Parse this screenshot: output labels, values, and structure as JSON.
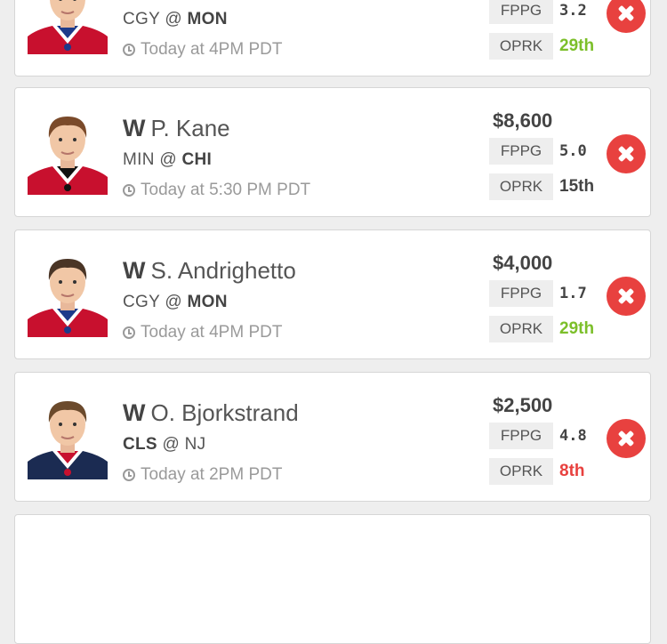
{
  "colors": {
    "oprk_good": "#7cbf2a",
    "oprk_bad": "#e8413f",
    "remove_button": "#e8413f"
  },
  "icons": {
    "time": "clock-icon",
    "remove": "close-icon"
  },
  "players": [
    {
      "position": "",
      "name": "",
      "team": "CGY",
      "opponent": "MON",
      "team_bold": false,
      "time": "Today at 4PM PDT",
      "salary": "",
      "fppg_label": "FPPG",
      "fppg": "3.2",
      "oprk_label": "OPRK",
      "oprk": "29th",
      "oprk_rating": "good",
      "jersey": "canadiens"
    },
    {
      "position": "W",
      "name": "P. Kane",
      "team": "MIN",
      "opponent": "CHI",
      "team_bold": false,
      "time": "Today at 5:30 PM PDT",
      "salary": "$8,600",
      "fppg_label": "FPPG",
      "fppg": "5.0",
      "oprk_label": "OPRK",
      "oprk": "15th",
      "oprk_rating": "neutral",
      "jersey": "blackhawks"
    },
    {
      "position": "W",
      "name": "S. Andrighetto",
      "team": "CGY",
      "opponent": "MON",
      "team_bold": false,
      "time": "Today at 4PM PDT",
      "salary": "$4,000",
      "fppg_label": "FPPG",
      "fppg": "1.7",
      "oprk_label": "OPRK",
      "oprk": "29th",
      "oprk_rating": "good",
      "jersey": "canadiens"
    },
    {
      "position": "W",
      "name": "O. Bjorkstrand",
      "team": "CLS",
      "opponent": "NJ",
      "team_bold": true,
      "time": "Today at 2PM PDT",
      "salary": "$2,500",
      "fppg_label": "FPPG",
      "fppg": "4.8",
      "oprk_label": "OPRK",
      "oprk": "8th",
      "oprk_rating": "bad",
      "jersey": "bluejackets"
    }
  ]
}
